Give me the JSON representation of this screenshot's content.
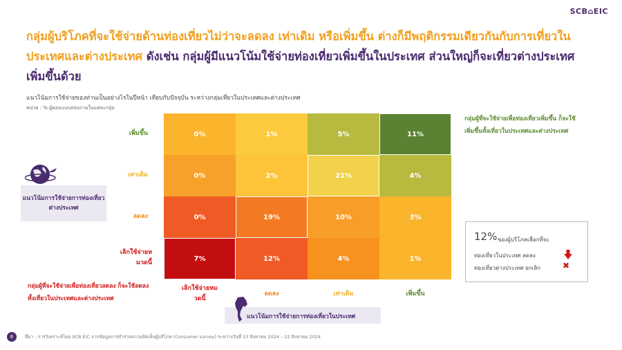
{
  "logo": "SCB⌂EIC",
  "headline": {
    "part1": "กลุ่มผู้บริโภคที่จะใช้จ่ายด้านท่องเที่ยวไม่ว่าจะลดลง เท่าเดิม หรือเพิ่มขึ้น ต่างก็มีพฤติกรรมเดียวกันกับการเที่ยวในประเทศและต่างประเทศ",
    "part2": " ดังเช่น กลุ่มผู้มีแนวโน้มใช้จ่ายท่องเที่ยวเพิ่มขึ้นในประเทศ ส่วนใหญ่ก็จะเที่ยวต่างประเทศเพิ่มขึ้นด้วย"
  },
  "subtitle": "แนวโน้มการใช้จ่ายของท่านเป็นอย่างไรในปีหน้า เทียบกับปัจจุบัน ระหว่างกลุ่มเที่ยวในประเทศและต่างประเทศ",
  "unit": "หน่วย : % ผู้ตอบแบบสอบถามในแต่ละกลุ่ม",
  "left_axis_label": "แนวโน้มการใช้จ่ายการท่องเที่ยวต่างประเทศ",
  "bottom_axis_label": "แนวโน้มการใช้จ่ายการท่องเที่ยวในประเทศ",
  "note_green": "กลุ่มผู้ที่จะใช้จ่ายเพื่อท่องเที่ยวเพิ่มขึ้น ก็จะใช้เพิ่มขึ้นทั้งเที่ยวในประเทศและต่างประเทศ",
  "note_red": "กลุ่มผู้ที่จะใช้จ่ายเพื่อท่องเที่ยวลดลง ก็จะใช้ลดลงทั้งเที่ยวในประเทศและต่างประเทศ",
  "callout": {
    "pct": "12%",
    "line1": "ของผู้บริโภคเลือกที่จะ",
    "line2": "ท่องเที่ยวในประเทศ   ลดลง",
    "line3": "ท่องเที่ยวต่างประเทศ  ยกเลิก"
  },
  "page_number": "6",
  "source": "ที่มา : การวิเคราะห์โดย SCB EIC จากข้อมูลการสำรวจความคิดเห็นผู้บริโภค (Consumer survey) ระหว่างวันที่ 13 สิงหาคม 2024 – 22 สิงหาคม 2024",
  "colors": {
    "purple": "#4b2b6e",
    "orange": "#f0a020",
    "green": "#5c8a2e",
    "red": "#d01818"
  },
  "chart_data": {
    "type": "heatmap",
    "xlabel": "แนวโน้มการใช้จ่ายการท่องเที่ยวในประเทศ",
    "ylabel": "แนวโน้มการใช้จ่ายการท่องเที่ยวต่างประเทศ",
    "x_categories": [
      "เลิกใช้จ่ายหมวดนี้",
      "ลดลง",
      "เท่าเดิม",
      "เพิ่มขึ้น"
    ],
    "y_categories": [
      "เพิ่มขึ้น",
      "เท่าเดิม",
      "ลดลง",
      "เลิกใช้จ่ายหมวดนี้"
    ],
    "x_label_colors": [
      "#d01818",
      "#f08a20",
      "#f0b020",
      "#5c8a2e"
    ],
    "y_label_colors": [
      "#5c8a2e",
      "#f0b020",
      "#f08a20",
      "#d01818"
    ],
    "values": [
      [
        0,
        1,
        5,
        11
      ],
      [
        0,
        2,
        21,
        4
      ],
      [
        0,
        19,
        10,
        3
      ],
      [
        7,
        12,
        4,
        1
      ]
    ],
    "cell_colors": [
      [
        "#fbb52c",
        "#fdca3e",
        "#b8ba40",
        "#5a8232"
      ],
      [
        "#f7a12a",
        "#fdc43a",
        "#f2d24a",
        "#b8ba40"
      ],
      [
        "#f05a24",
        "#f37a22",
        "#f89e28",
        "#fbb52c"
      ],
      [
        "#c20e10",
        "#f05a24",
        "#f7921e",
        "#fbb52c"
      ]
    ],
    "unit": "%"
  }
}
